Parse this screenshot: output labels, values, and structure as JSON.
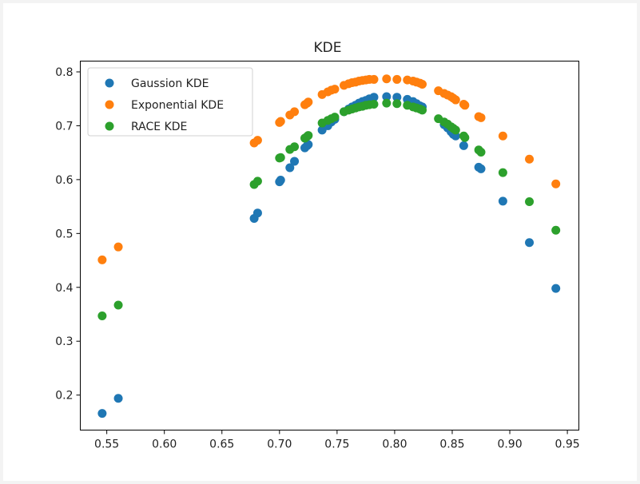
{
  "chart_data": {
    "type": "scatter",
    "title": "KDE",
    "xlabel": "",
    "ylabel": "",
    "xlim": [
      0.527,
      0.96
    ],
    "ylim": [
      0.135,
      0.82
    ],
    "xticks": [
      0.55,
      0.6,
      0.65,
      0.7,
      0.75,
      0.8,
      0.85,
      0.9,
      0.95
    ],
    "xtick_labels": [
      "0.55",
      "0.60",
      "0.65",
      "0.70",
      "0.75",
      "0.80",
      "0.85",
      "0.90",
      "0.95"
    ],
    "yticks": [
      0.2,
      0.3,
      0.4,
      0.5,
      0.6,
      0.7,
      0.8
    ],
    "ytick_labels": [
      "0.2",
      "0.3",
      "0.4",
      "0.5",
      "0.6",
      "0.7",
      "0.8"
    ],
    "legend_position": "upper-left",
    "grid": false,
    "series": [
      {
        "name": "Gaussion KDE",
        "color": "#1f77b4",
        "points": [
          [
            0.546,
            0.166
          ],
          [
            0.56,
            0.194
          ],
          [
            0.678,
            0.528
          ],
          [
            0.681,
            0.538
          ],
          [
            0.7,
            0.596
          ],
          [
            0.701,
            0.599
          ],
          [
            0.709,
            0.622
          ],
          [
            0.713,
            0.634
          ],
          [
            0.722,
            0.659
          ],
          [
            0.724,
            0.663
          ],
          [
            0.725,
            0.665
          ],
          [
            0.737,
            0.692
          ],
          [
            0.742,
            0.7
          ],
          [
            0.745,
            0.707
          ],
          [
            0.748,
            0.712
          ],
          [
            0.756,
            0.726
          ],
          [
            0.76,
            0.731
          ],
          [
            0.763,
            0.735
          ],
          [
            0.766,
            0.738
          ],
          [
            0.769,
            0.742
          ],
          [
            0.772,
            0.745
          ],
          [
            0.775,
            0.747
          ],
          [
            0.778,
            0.75
          ],
          [
            0.782,
            0.753
          ],
          [
            0.793,
            0.754
          ],
          [
            0.802,
            0.753
          ],
          [
            0.811,
            0.749
          ],
          [
            0.816,
            0.745
          ],
          [
            0.819,
            0.741
          ],
          [
            0.822,
            0.737
          ],
          [
            0.824,
            0.735
          ],
          [
            0.843,
            0.702
          ],
          [
            0.846,
            0.696
          ],
          [
            0.849,
            0.689
          ],
          [
            0.851,
            0.684
          ],
          [
            0.853,
            0.681
          ],
          [
            0.86,
            0.663
          ],
          [
            0.873,
            0.623
          ],
          [
            0.875,
            0.62
          ],
          [
            0.894,
            0.56
          ],
          [
            0.917,
            0.483
          ],
          [
            0.94,
            0.398
          ]
        ]
      },
      {
        "name": "Exponential KDE",
        "color": "#ff7f0e",
        "points": [
          [
            0.546,
            0.451
          ],
          [
            0.56,
            0.475
          ],
          [
            0.678,
            0.668
          ],
          [
            0.681,
            0.673
          ],
          [
            0.7,
            0.706
          ],
          [
            0.701,
            0.708
          ],
          [
            0.709,
            0.72
          ],
          [
            0.713,
            0.726
          ],
          [
            0.722,
            0.739
          ],
          [
            0.724,
            0.742
          ],
          [
            0.725,
            0.744
          ],
          [
            0.737,
            0.758
          ],
          [
            0.742,
            0.763
          ],
          [
            0.745,
            0.766
          ],
          [
            0.748,
            0.768
          ],
          [
            0.756,
            0.775
          ],
          [
            0.76,
            0.778
          ],
          [
            0.763,
            0.78
          ],
          [
            0.766,
            0.781
          ],
          [
            0.769,
            0.783
          ],
          [
            0.772,
            0.784
          ],
          [
            0.775,
            0.785
          ],
          [
            0.778,
            0.786
          ],
          [
            0.782,
            0.786
          ],
          [
            0.793,
            0.787
          ],
          [
            0.802,
            0.786
          ],
          [
            0.811,
            0.785
          ],
          [
            0.816,
            0.783
          ],
          [
            0.819,
            0.781
          ],
          [
            0.822,
            0.779
          ],
          [
            0.824,
            0.777
          ],
          [
            0.838,
            0.765
          ],
          [
            0.843,
            0.76
          ],
          [
            0.846,
            0.757
          ],
          [
            0.849,
            0.754
          ],
          [
            0.851,
            0.751
          ],
          [
            0.853,
            0.748
          ],
          [
            0.86,
            0.74
          ],
          [
            0.861,
            0.738
          ],
          [
            0.873,
            0.717
          ],
          [
            0.875,
            0.715
          ],
          [
            0.894,
            0.681
          ],
          [
            0.917,
            0.638
          ],
          [
            0.94,
            0.592
          ]
        ]
      },
      {
        "name": "RACE KDE",
        "color": "#2ca02c",
        "points": [
          [
            0.546,
            0.347
          ],
          [
            0.56,
            0.367
          ],
          [
            0.678,
            0.591
          ],
          [
            0.681,
            0.597
          ],
          [
            0.7,
            0.64
          ],
          [
            0.701,
            0.641
          ],
          [
            0.709,
            0.656
          ],
          [
            0.713,
            0.661
          ],
          [
            0.722,
            0.677
          ],
          [
            0.724,
            0.68
          ],
          [
            0.725,
            0.682
          ],
          [
            0.737,
            0.705
          ],
          [
            0.742,
            0.71
          ],
          [
            0.745,
            0.713
          ],
          [
            0.748,
            0.716
          ],
          [
            0.756,
            0.726
          ],
          [
            0.76,
            0.729
          ],
          [
            0.763,
            0.731
          ],
          [
            0.766,
            0.733
          ],
          [
            0.769,
            0.735
          ],
          [
            0.772,
            0.736
          ],
          [
            0.775,
            0.738
          ],
          [
            0.778,
            0.739
          ],
          [
            0.782,
            0.74
          ],
          [
            0.793,
            0.742
          ],
          [
            0.802,
            0.741
          ],
          [
            0.811,
            0.738
          ],
          [
            0.816,
            0.735
          ],
          [
            0.819,
            0.733
          ],
          [
            0.822,
            0.731
          ],
          [
            0.824,
            0.729
          ],
          [
            0.838,
            0.713
          ],
          [
            0.843,
            0.707
          ],
          [
            0.846,
            0.703
          ],
          [
            0.849,
            0.698
          ],
          [
            0.851,
            0.695
          ],
          [
            0.853,
            0.692
          ],
          [
            0.86,
            0.681
          ],
          [
            0.861,
            0.678
          ],
          [
            0.873,
            0.655
          ],
          [
            0.875,
            0.651
          ],
          [
            0.894,
            0.613
          ],
          [
            0.917,
            0.559
          ],
          [
            0.94,
            0.506
          ]
        ]
      }
    ]
  }
}
